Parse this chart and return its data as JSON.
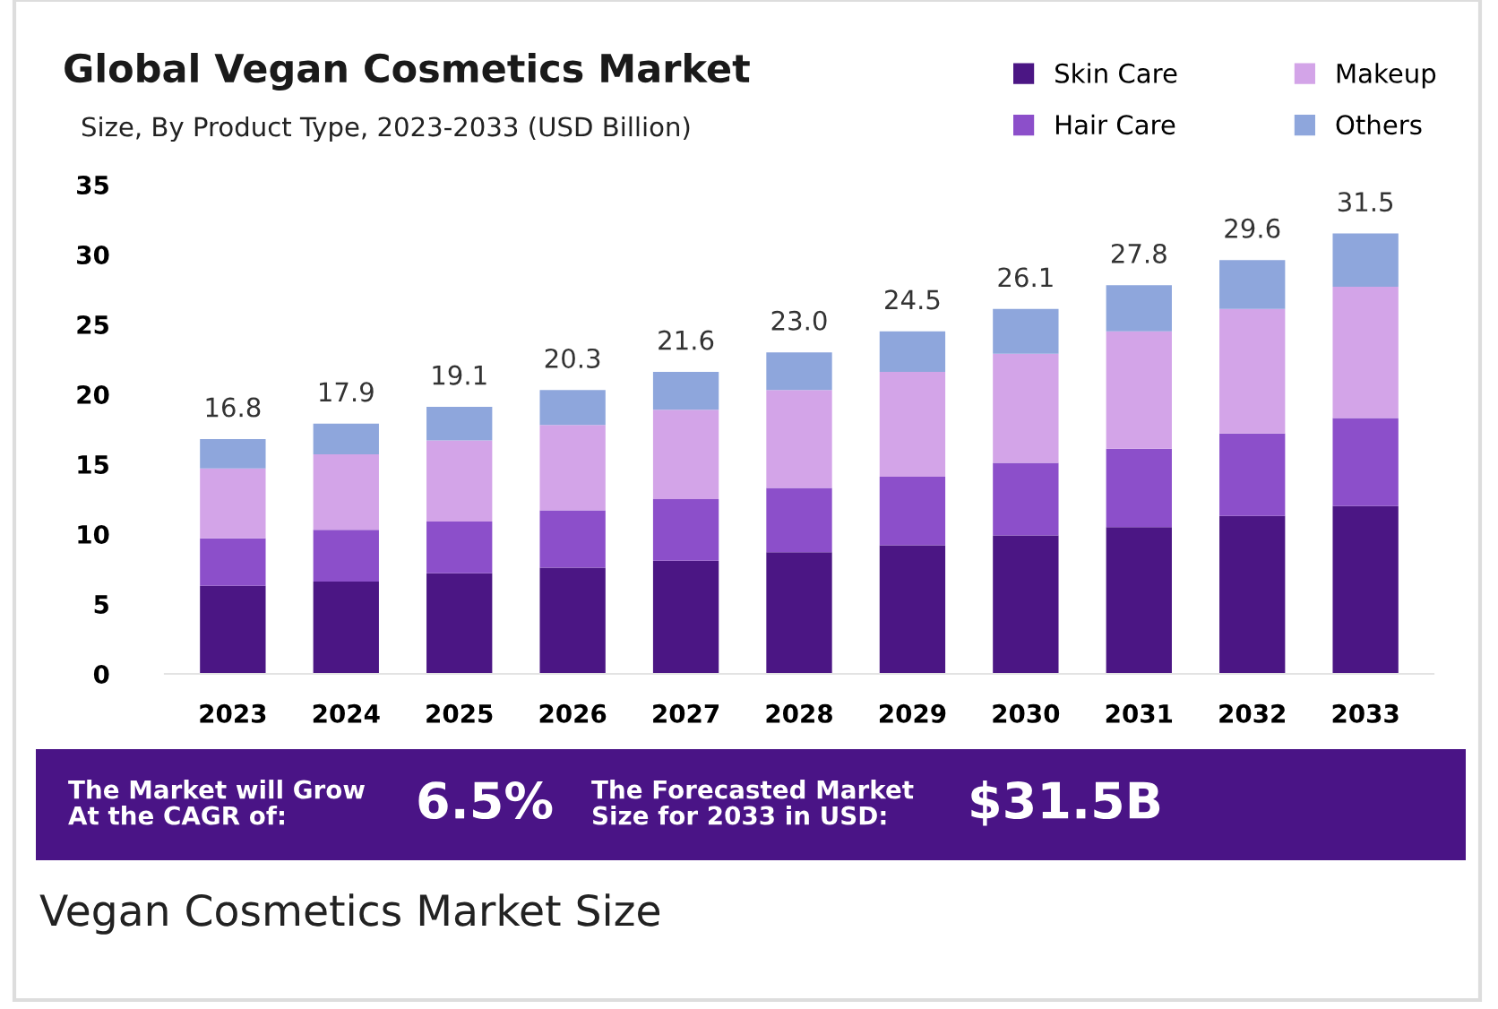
{
  "chart_data": {
    "type": "bar",
    "stacked": true,
    "title": "Global Vegan Cosmetics Market",
    "subtitle": "Size, By Product Type, 2023-2033 (USD Billion)",
    "categories": [
      "2023",
      "2024",
      "2025",
      "2026",
      "2027",
      "2028",
      "2029",
      "2030",
      "2031",
      "2032",
      "2033"
    ],
    "series": [
      {
        "name": "Skin Care",
        "color": "#4b1684",
        "values": [
          6.3,
          6.6,
          7.2,
          7.6,
          8.1,
          8.7,
          9.2,
          9.9,
          10.5,
          11.3,
          12.0
        ]
      },
      {
        "name": "Hair Care",
        "color": "#8c4fca",
        "values": [
          3.4,
          3.7,
          3.7,
          4.1,
          4.4,
          4.6,
          4.9,
          5.2,
          5.6,
          5.9,
          6.3
        ]
      },
      {
        "name": "Makeup",
        "color": "#d3a4e8",
        "values": [
          5.0,
          5.4,
          5.8,
          6.1,
          6.4,
          7.0,
          7.5,
          7.8,
          8.4,
          8.9,
          9.4
        ]
      },
      {
        "name": "Others",
        "color": "#8ea6dc",
        "values": [
          2.1,
          2.2,
          2.4,
          2.5,
          2.7,
          2.7,
          2.9,
          3.2,
          3.3,
          3.5,
          3.8
        ]
      }
    ],
    "totals": [
      "16.8",
      "17.9",
      "19.1",
      "20.3",
      "21.6",
      "23.0",
      "24.5",
      "26.1",
      "27.8",
      "29.6",
      "31.5"
    ],
    "ylim": [
      0,
      35
    ],
    "yticks": [
      0,
      5,
      10,
      15,
      20,
      25,
      30,
      35
    ],
    "grid": false,
    "legend": "top right",
    "annotations": [
      "The Market will Grow\nAt the CAGR of:",
      "6.5%",
      "The Forecasted Market\nSize for 2033 in USD:",
      "$31.5B",
      "Vegan Cosmetics Market Size"
    ]
  }
}
